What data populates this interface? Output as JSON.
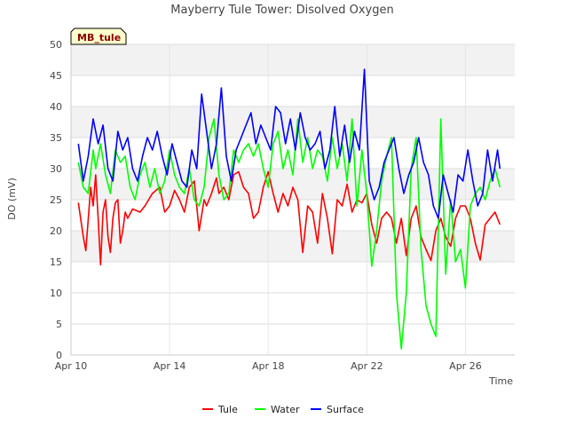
{
  "chart_data": {
    "type": "line",
    "title": "Mayberry Tule Tower: Disolved Oxygen",
    "xlabel": "Time",
    "ylabel": "DO (mV)",
    "tag": "MB_tule",
    "x_range_days": [
      10,
      28
    ],
    "ylim": [
      0,
      50
    ],
    "yticks": [
      0,
      5,
      10,
      15,
      20,
      25,
      30,
      35,
      40,
      45,
      50
    ],
    "xticks": [
      {
        "day": 10,
        "label": "Apr 10"
      },
      {
        "day": 14,
        "label": "Apr 14"
      },
      {
        "day": 18,
        "label": "Apr 18"
      },
      {
        "day": 22,
        "label": "Apr 22"
      },
      {
        "day": 26,
        "label": "Apr 26"
      }
    ],
    "grid": true,
    "legend_placement": "bottom",
    "series": [
      {
        "name": "Tule",
        "color": "#ff0000",
        "x": [
          10.3,
          10.5,
          10.6,
          10.8,
          10.9,
          11.0,
          11.1,
          11.2,
          11.3,
          11.4,
          11.5,
          11.6,
          11.7,
          11.8,
          11.9,
          12.0,
          12.1,
          12.2,
          12.3,
          12.5,
          12.8,
          13.0,
          13.3,
          13.6,
          13.8,
          14.0,
          14.2,
          14.4,
          14.6,
          14.8,
          15.0,
          15.2,
          15.4,
          15.5,
          15.7,
          15.9,
          16.0,
          16.2,
          16.4,
          16.6,
          16.8,
          17.0,
          17.2,
          17.4,
          17.6,
          17.8,
          18.0,
          18.2,
          18.4,
          18.6,
          18.8,
          19.0,
          19.2,
          19.4,
          19.6,
          19.8,
          20.0,
          20.2,
          20.4,
          20.6,
          20.8,
          21.0,
          21.2,
          21.4,
          21.6,
          21.8,
          22.0,
          22.2,
          22.4,
          22.6,
          22.8,
          23.0,
          23.2,
          23.4,
          23.6,
          23.8,
          24.0,
          24.2,
          24.4,
          24.6,
          24.8,
          25.0,
          25.2,
          25.4,
          25.6,
          25.8,
          26.0,
          26.2,
          26.4,
          26.6,
          26.8,
          27.0,
          27.2,
          27.4
        ],
        "values": [
          24.5,
          19,
          16.8,
          27,
          24,
          29,
          22,
          14.5,
          23,
          25,
          19,
          16.5,
          22,
          24.5,
          25,
          18,
          20,
          23,
          22,
          23.5,
          23,
          24,
          26,
          27,
          23,
          24,
          26.5,
          25,
          23,
          27,
          28,
          20,
          25,
          24,
          26,
          28.5,
          26,
          27,
          25,
          29,
          29.5,
          27,
          26,
          22,
          23,
          27,
          29.5,
          26,
          23,
          26,
          24,
          27,
          25,
          16.5,
          24,
          23,
          18,
          26,
          22,
          16.3,
          25,
          24,
          27.5,
          23,
          25,
          24.5,
          26,
          21,
          18,
          22,
          23,
          22,
          18,
          22,
          16,
          22,
          24,
          19,
          17,
          15.2,
          20,
          22,
          19,
          17.5,
          22,
          24,
          24,
          22,
          18,
          15.3,
          21,
          22,
          23,
          21
        ]
      },
      {
        "name": "Water",
        "color": "#00ff00",
        "x": [
          10.3,
          10.5,
          10.7,
          10.9,
          11.0,
          11.2,
          11.4,
          11.6,
          11.8,
          12.0,
          12.2,
          12.4,
          12.6,
          12.8,
          13.0,
          13.2,
          13.4,
          13.6,
          13.8,
          14.0,
          14.2,
          14.4,
          14.6,
          14.8,
          15.0,
          15.2,
          15.4,
          15.6,
          15.8,
          16.0,
          16.2,
          16.4,
          16.6,
          16.8,
          17.0,
          17.2,
          17.4,
          17.6,
          17.8,
          18.0,
          18.2,
          18.4,
          18.6,
          18.8,
          19.0,
          19.2,
          19.4,
          19.6,
          19.8,
          20.0,
          20.2,
          20.4,
          20.6,
          20.8,
          21.0,
          21.2,
          21.4,
          21.6,
          21.8,
          22.0,
          22.2,
          22.4,
          22.6,
          22.8,
          23.0,
          23.2,
          23.4,
          23.6,
          23.8,
          24.0,
          24.2,
          24.4,
          24.6,
          24.8,
          25.0,
          25.2,
          25.4,
          25.6,
          25.8,
          26.0,
          26.2,
          26.4,
          26.6,
          26.8,
          27.0,
          27.2,
          27.4
        ],
        "values": [
          31,
          27,
          26,
          33,
          30,
          34,
          29,
          26,
          33,
          31,
          32,
          27,
          25,
          29,
          31,
          27,
          30,
          26,
          28,
          33,
          29,
          27,
          26,
          30,
          25,
          24,
          27,
          35,
          38,
          29,
          25,
          26,
          33,
          31,
          33,
          34,
          32,
          34,
          30,
          27,
          34,
          36,
          30,
          33,
          29,
          38,
          31,
          35,
          30,
          33,
          32,
          28,
          35,
          30,
          34,
          28,
          38,
          24,
          33,
          26,
          14.3,
          20,
          28,
          32,
          35,
          10,
          1,
          10,
          30,
          35,
          17,
          8,
          5,
          3,
          38,
          13,
          25,
          15,
          17,
          10.8,
          24,
          26,
          27,
          25,
          28,
          30,
          27
        ]
      },
      {
        "name": "Surface",
        "color": "#0000ff",
        "x": [
          10.3,
          10.5,
          10.7,
          10.9,
          11.1,
          11.3,
          11.5,
          11.7,
          11.9,
          12.1,
          12.3,
          12.5,
          12.7,
          12.9,
          13.1,
          13.3,
          13.5,
          13.7,
          13.9,
          14.1,
          14.3,
          14.5,
          14.7,
          14.9,
          15.1,
          15.3,
          15.5,
          15.7,
          15.9,
          16.1,
          16.3,
          16.5,
          16.7,
          16.9,
          17.1,
          17.3,
          17.5,
          17.7,
          17.9,
          18.1,
          18.3,
          18.5,
          18.7,
          18.9,
          19.1,
          19.3,
          19.5,
          19.7,
          19.9,
          20.1,
          20.3,
          20.5,
          20.7,
          20.9,
          21.1,
          21.3,
          21.5,
          21.7,
          21.9,
          22.1,
          22.3,
          22.5,
          22.7,
          22.9,
          23.1,
          23.3,
          23.5,
          23.7,
          23.9,
          24.1,
          24.3,
          24.5,
          24.7,
          24.9,
          25.1,
          25.3,
          25.5,
          25.7,
          25.9,
          26.1,
          26.3,
          26.5,
          26.7,
          26.9,
          27.1,
          27.3,
          27.4
        ],
        "values": [
          34,
          28,
          32,
          38,
          34,
          37,
          30,
          28,
          36,
          33,
          35,
          30,
          28,
          32,
          35,
          33,
          36,
          32,
          29,
          34,
          31,
          28,
          27,
          33,
          30,
          42,
          36,
          30,
          34,
          43,
          32,
          28,
          33,
          35,
          37,
          39,
          34,
          37,
          35,
          33,
          40,
          39,
          34,
          38,
          33,
          39,
          35,
          33,
          34,
          36,
          30,
          33,
          40,
          32,
          37,
          31,
          36,
          33,
          46,
          28,
          25,
          27,
          31,
          33,
          35,
          30,
          26,
          29,
          31,
          35,
          31,
          29,
          24,
          22,
          29,
          26,
          23,
          29,
          28,
          33,
          28,
          24,
          26,
          33,
          28,
          33,
          30
        ]
      }
    ]
  }
}
